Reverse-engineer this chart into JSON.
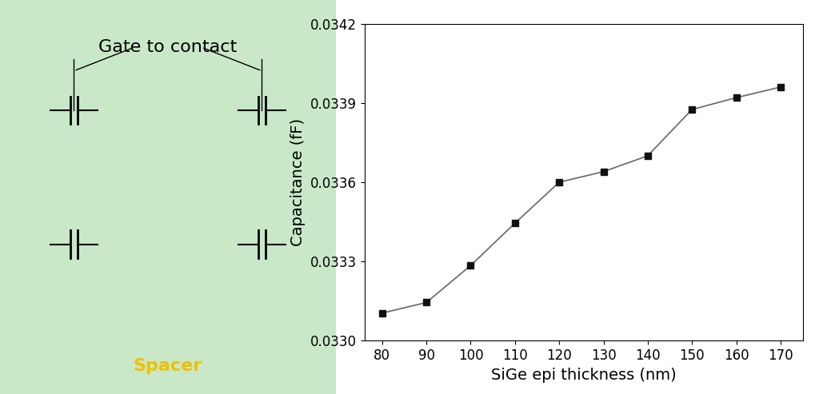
{
  "x": [
    80,
    90,
    100,
    110,
    120,
    130,
    140,
    150,
    160,
    170
  ],
  "y": [
    0.033105,
    0.033145,
    0.033285,
    0.033445,
    0.0336,
    0.03364,
    0.0337,
    0.033875,
    0.03392,
    0.03396
  ],
  "xlabel": "SiGe epi thickness (nm)",
  "ylabel": "Capacitance (fF)",
  "ylim": [
    0.033,
    0.0342
  ],
  "xlim": [
    76,
    175
  ],
  "xticks": [
    80,
    90,
    100,
    110,
    120,
    130,
    140,
    150,
    160,
    170
  ],
  "yticks": [
    0.033,
    0.0333,
    0.0336,
    0.0339,
    0.0342
  ],
  "line_color": "#666666",
  "marker": "s",
  "marker_color": "#111111",
  "marker_size": 6,
  "linewidth": 1.2,
  "xlabel_fontsize": 14,
  "ylabel_fontsize": 14,
  "tick_fontsize": 12,
  "left_panel_bg": "#c8e8c8",
  "annotations_top": [
    "Gate to contact"
  ],
  "annotations_bot": [
    "Spacer"
  ],
  "figure_width": 10.24,
  "figure_height": 4.93
}
